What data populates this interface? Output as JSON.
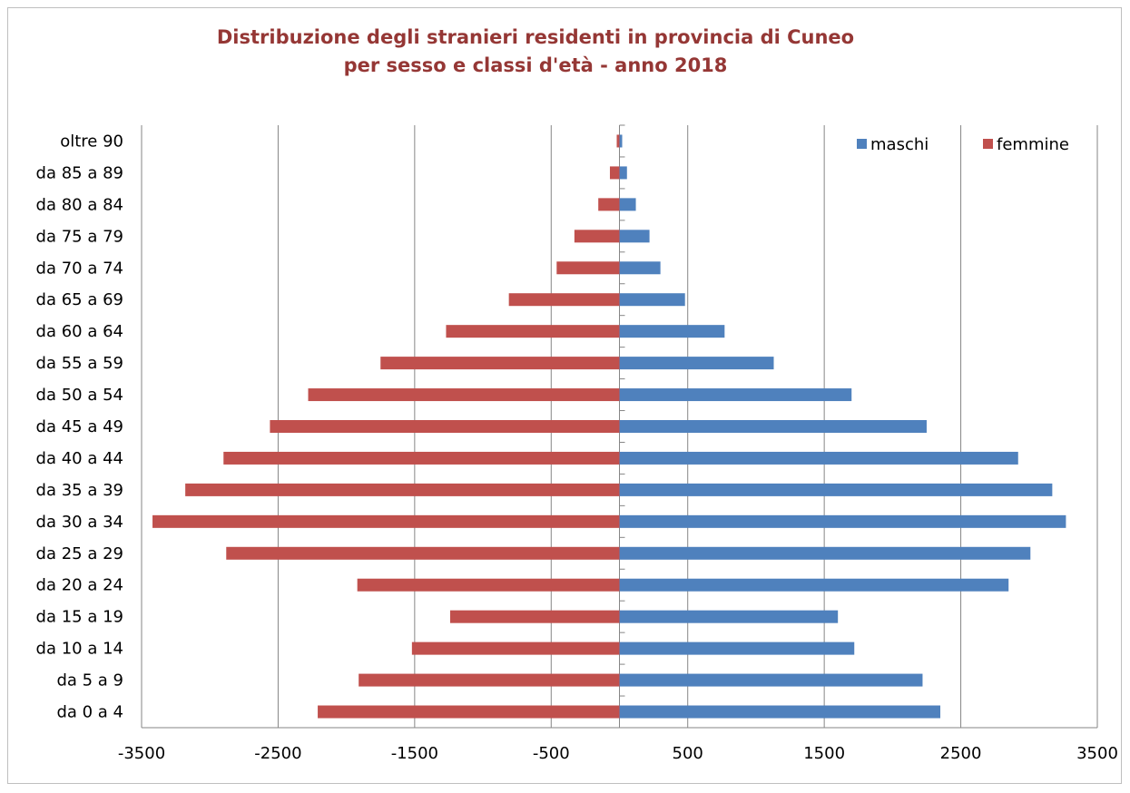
{
  "chart_data": {
    "type": "bar",
    "orientation": "horizontal",
    "title": "Distribuzione degli stranieri residenti in provincia di Cuneo",
    "subtitle": "per sesso e classi d'età - anno 2018",
    "categories": [
      "da 0 a 4",
      "da 5 a 9",
      "da 10 a 14",
      "da 15 a 19",
      "da 20 a 24",
      "da 25 a 29",
      "da 30 a 34",
      "da 35 a 39",
      "da 40 a 44",
      "da 45 a 49",
      "da 50 a 54",
      "da 55 a 59",
      "da 60 a 64",
      "da 65 a 69",
      "da 70 a 74",
      "da 75 a 79",
      "da 80 a 84",
      "da 85 a 89",
      "oltre 90"
    ],
    "series": [
      {
        "name": "maschi",
        "color": "#4f81bd",
        "values": [
          2350,
          2220,
          1720,
          1600,
          2850,
          3010,
          3270,
          3170,
          2920,
          2250,
          1700,
          1130,
          770,
          480,
          300,
          220,
          120,
          55,
          20
        ]
      },
      {
        "name": "femmine",
        "color": "#c0504d",
        "values": [
          -2210,
          -1910,
          -1520,
          -1240,
          -1920,
          -2880,
          -3420,
          -3180,
          -2900,
          -2560,
          -2280,
          -1750,
          -1270,
          -810,
          -460,
          -330,
          -155,
          -70,
          -20
        ]
      }
    ],
    "x_ticks": [
      "-3500",
      "-2500",
      "-1500",
      "-500",
      "500",
      "1500",
      "2500",
      "3500"
    ],
    "xlim": [
      -3500,
      3500
    ],
    "grid": "vertical",
    "legend": "top-right"
  }
}
